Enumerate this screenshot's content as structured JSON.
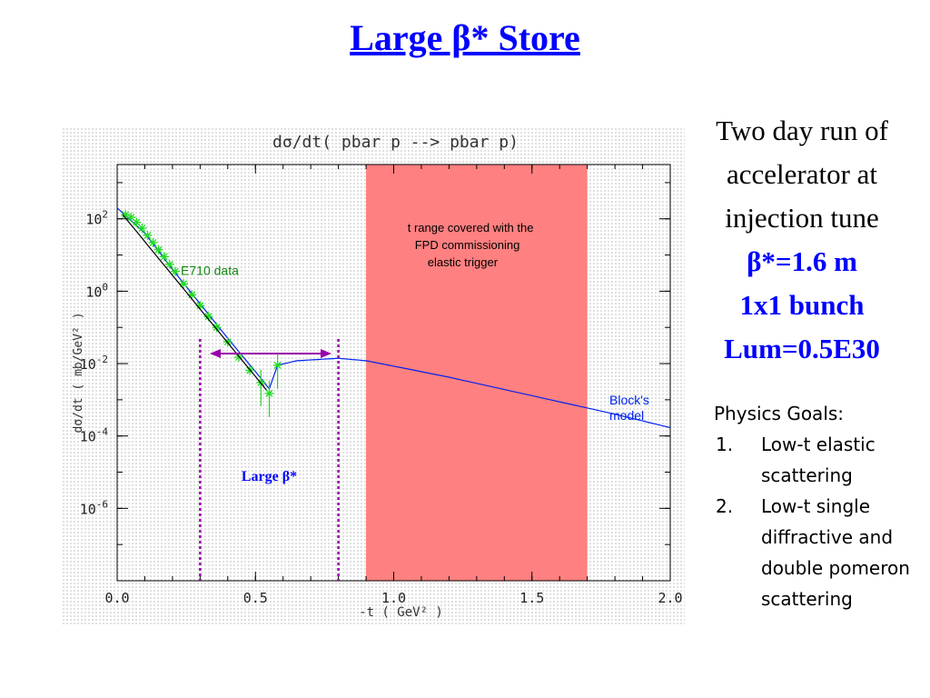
{
  "slide": {
    "title": "Large β* Store"
  },
  "run_info": {
    "line1": "Two day run of",
    "line2": "accelerator at",
    "line3": "injection tune",
    "beta": "β*=1.6 m",
    "bunch": "1x1 bunch",
    "lum": "Lum=0.5E30"
  },
  "goals": {
    "heading": "Physics Goals:",
    "items": [
      {
        "num": "1.",
        "text": "Low-t elastic scattering"
      },
      {
        "num": "2.",
        "text": "Low-t single diffractive and double pomeron scattering"
      }
    ]
  },
  "chart_data": {
    "type": "scatter",
    "title": "dσ/dt( pbar p --> pbar p)",
    "xlabel": "-t  ( GeV² )",
    "ylabel": "dσ/dt  ( mb/GeV² )",
    "xlim": [
      0.0,
      2.0
    ],
    "ylim_log10": [
      -8,
      3.5
    ],
    "y_scale": "log",
    "x_ticks": [
      "0.0",
      "0.5",
      "1.0",
      "1.5",
      "2.0"
    ],
    "y_ticks": [
      {
        "base": "10",
        "exp": "2",
        "log": 2
      },
      {
        "base": "10",
        "exp": "0",
        "log": 0
      },
      {
        "base": "10",
        "exp": "-2",
        "log": -2
      },
      {
        "base": "10",
        "exp": "-4",
        "log": -4
      },
      {
        "base": "10",
        "exp": "-6",
        "log": -6
      }
    ],
    "series": [
      {
        "name": "E710 data",
        "color": "#22dd22",
        "label_color": "#118811",
        "points": [
          [
            0.03,
            130
          ],
          [
            0.05,
            110
          ],
          [
            0.07,
            80
          ],
          [
            0.09,
            55
          ],
          [
            0.11,
            35
          ],
          [
            0.13,
            22
          ],
          [
            0.15,
            14
          ],
          [
            0.17,
            9
          ],
          [
            0.19,
            5.5
          ],
          [
            0.21,
            3.5
          ],
          [
            0.24,
            1.6
          ],
          [
            0.27,
            0.8
          ],
          [
            0.3,
            0.4
          ],
          [
            0.33,
            0.2
          ],
          [
            0.36,
            0.1
          ],
          [
            0.4,
            0.04
          ],
          [
            0.44,
            0.015
          ],
          [
            0.48,
            0.0065
          ],
          [
            0.52,
            0.003
          ],
          [
            0.55,
            0.0015
          ],
          [
            0.58,
            0.009
          ]
        ]
      },
      {
        "name": "Block's model",
        "color": "#0022ee",
        "curve": [
          [
            0.0,
            200
          ],
          [
            0.1,
            40
          ],
          [
            0.2,
            4
          ],
          [
            0.3,
            0.45
          ],
          [
            0.4,
            0.05
          ],
          [
            0.5,
            0.006
          ],
          [
            0.55,
            0.002
          ],
          [
            0.58,
            0.009
          ],
          [
            0.65,
            0.012
          ],
          [
            0.8,
            0.014
          ],
          [
            0.9,
            0.012
          ],
          [
            1.0,
            0.0085
          ],
          [
            1.2,
            0.0042
          ],
          [
            1.5,
            0.0013
          ],
          [
            1.8,
            0.0004
          ],
          [
            2.0,
            0.00017
          ]
        ]
      }
    ],
    "annotations": {
      "fpd_region": {
        "x_from": 0.9,
        "x_to": 1.7,
        "color": "#ff8080",
        "text": [
          "t range covered with the",
          "FPD commissioning",
          "elastic trigger"
        ]
      },
      "large_beta_region": {
        "x_from": 0.3,
        "x_to": 0.8,
        "color": "#9900aa",
        "label": "Large β*",
        "label_color": "#0000ff"
      },
      "e710_label": "E710 data",
      "model_label": [
        "Block's",
        "model"
      ]
    }
  }
}
